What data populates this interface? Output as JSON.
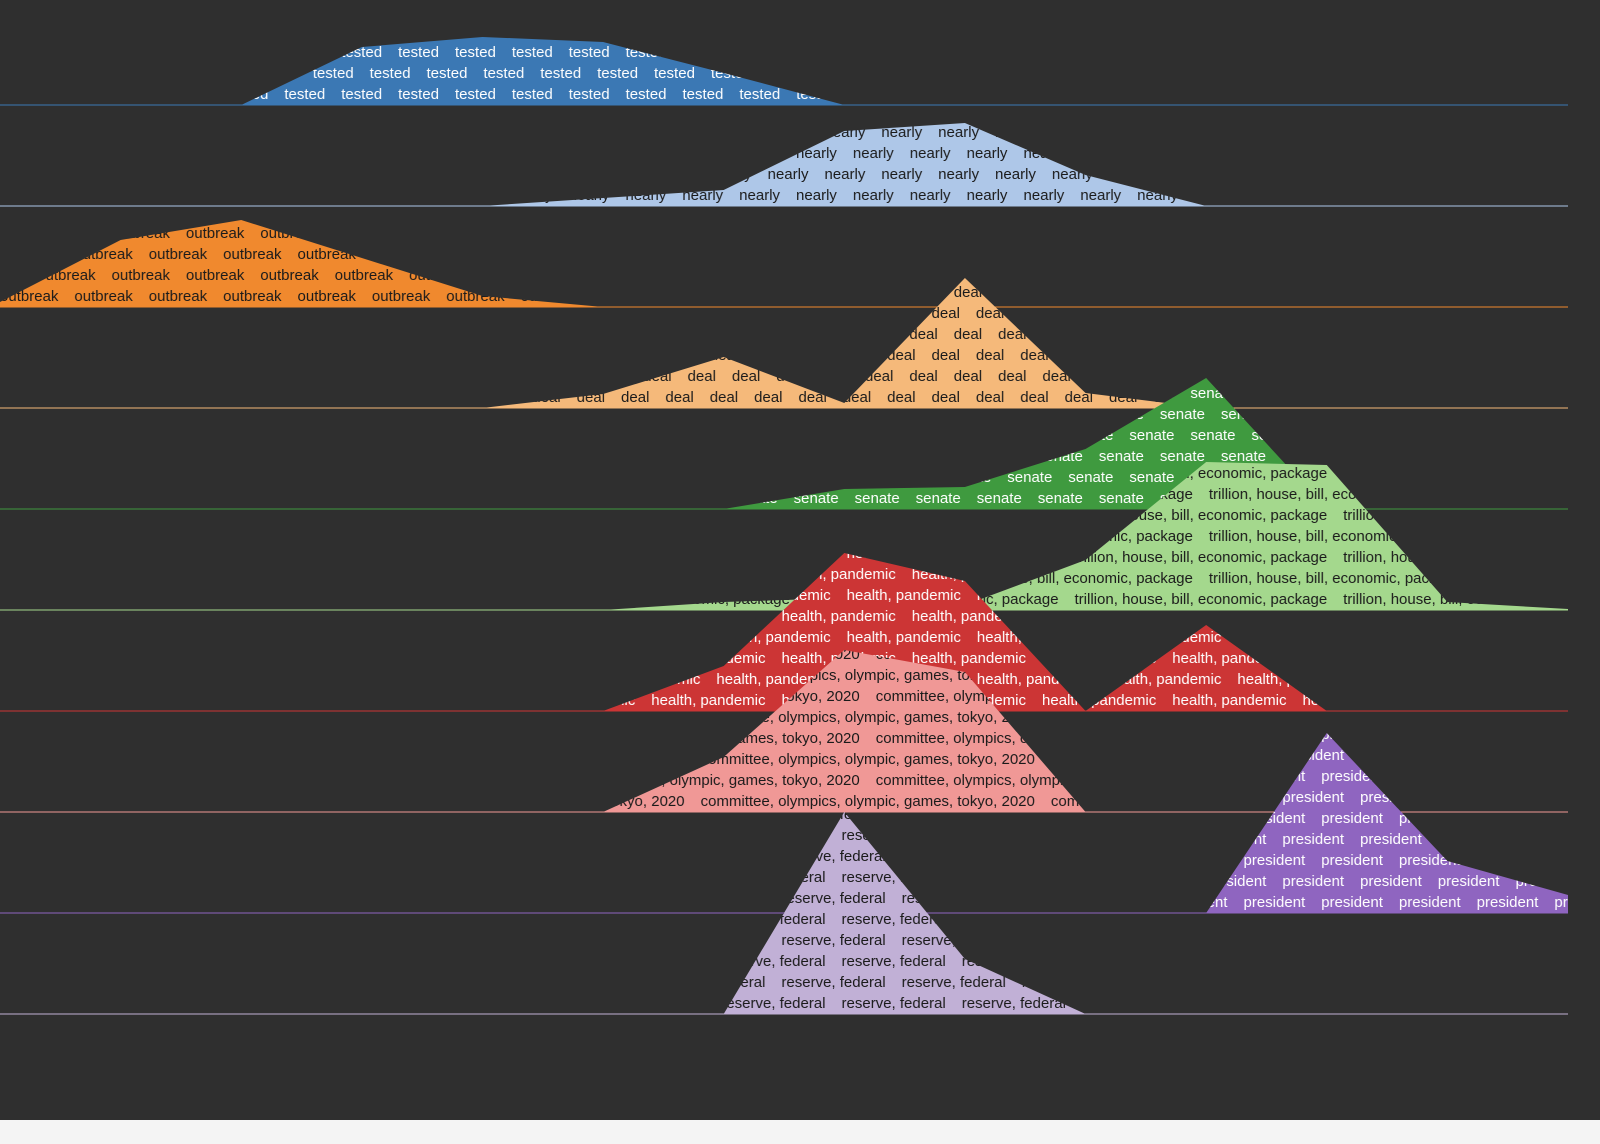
{
  "chart_data": {
    "type": "ridgeline",
    "series": [
      {
        "name": "tested",
        "color": "#3b78b4",
        "values": [
          0,
          0,
          0,
          58,
          68,
          63,
          32,
          0,
          0,
          0,
          0,
          0,
          0,
          0
        ]
      },
      {
        "name": "nearly",
        "color": "#aec7e8",
        "values": [
          0,
          0,
          0,
          0,
          0,
          8,
          16,
          75,
          83,
          31,
          0,
          0,
          0,
          0
        ]
      },
      {
        "name": "outbreak",
        "color": "#f0892e",
        "values": [
          5,
          67,
          87,
          49,
          11,
          0,
          0,
          0,
          0,
          0,
          0,
          0,
          0,
          0
        ]
      },
      {
        "name": "deal",
        "color": "#f5b97a",
        "values": [
          0,
          0,
          0,
          0,
          0,
          14,
          51,
          5,
          130,
          15,
          0,
          0,
          0,
          0
        ]
      },
      {
        "name": "senate",
        "color": "#3f9a3f",
        "values": [
          0,
          0,
          0,
          0,
          0,
          0,
          0,
          20,
          22,
          60,
          131,
          0,
          0,
          0
        ]
      },
      {
        "name": "trillion, house, bill, economic, package",
        "color": "#a4d88d",
        "values": [
          0,
          0,
          0,
          0,
          0,
          0,
          8,
          12,
          5,
          50,
          148,
          145,
          8,
          1
        ]
      },
      {
        "name": "health, pandemic",
        "color": "#cc3535",
        "values": [
          0,
          0,
          0,
          0,
          0,
          0,
          45,
          158,
          130,
          0,
          86,
          0,
          0,
          0
        ]
      },
      {
        "name": "committee, olympics, olympic, games, tokyo, 2020",
        "color": "#f09896",
        "values": [
          0,
          0,
          0,
          0,
          0,
          0,
          55,
          162,
          140,
          0,
          0,
          0,
          0,
          0
        ]
      },
      {
        "name": "president",
        "color": "#8f65c0",
        "values": [
          0,
          0,
          0,
          0,
          0,
          0,
          0,
          0,
          0,
          0,
          0,
          180,
          52,
          18
        ]
      },
      {
        "name": "reserve, federal",
        "color": "#c1b0d6",
        "values": [
          0,
          0,
          0,
          0,
          0,
          0,
          0,
          202,
          55,
          0,
          0,
          0,
          0,
          0
        ]
      }
    ]
  }
}
